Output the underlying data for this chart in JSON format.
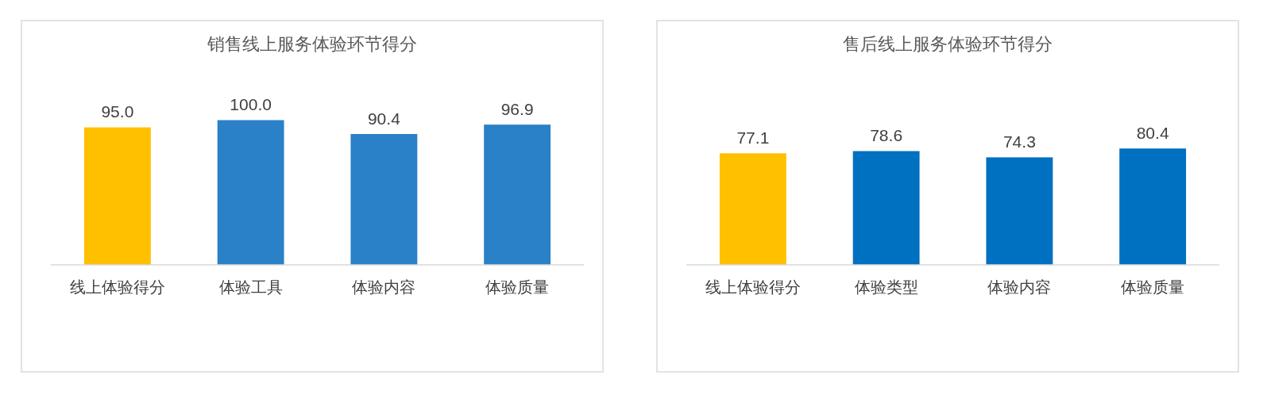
{
  "chart_data": [
    {
      "type": "bar",
      "title": "销售线上服务体验环节得分",
      "categories": [
        "线上体验得分",
        "体验工具",
        "体验内容",
        "体验质量"
      ],
      "values": [
        95.0,
        100.0,
        90.4,
        96.9
      ],
      "value_labels": [
        "95.0",
        "100.0",
        "90.4",
        "96.9"
      ],
      "colors": [
        "#ffc000",
        "#2a81c8",
        "#2a81c8",
        "#2a81c8"
      ],
      "tick_labels": "x"
    },
    {
      "type": "bar",
      "title": "售后线上服务体验环节得分",
      "categories": [
        "线上体验得分",
        "体验类型",
        "体验内容",
        "体验质量"
      ],
      "values": [
        77.1,
        78.6,
        74.3,
        80.4
      ],
      "value_labels": [
        "77.1",
        "78.6",
        "74.3",
        "80.4"
      ],
      "colors": [
        "#ffc000",
        "#0070c0",
        "#0070c0",
        "#0070c0"
      ],
      "tick_labels": "x"
    }
  ]
}
